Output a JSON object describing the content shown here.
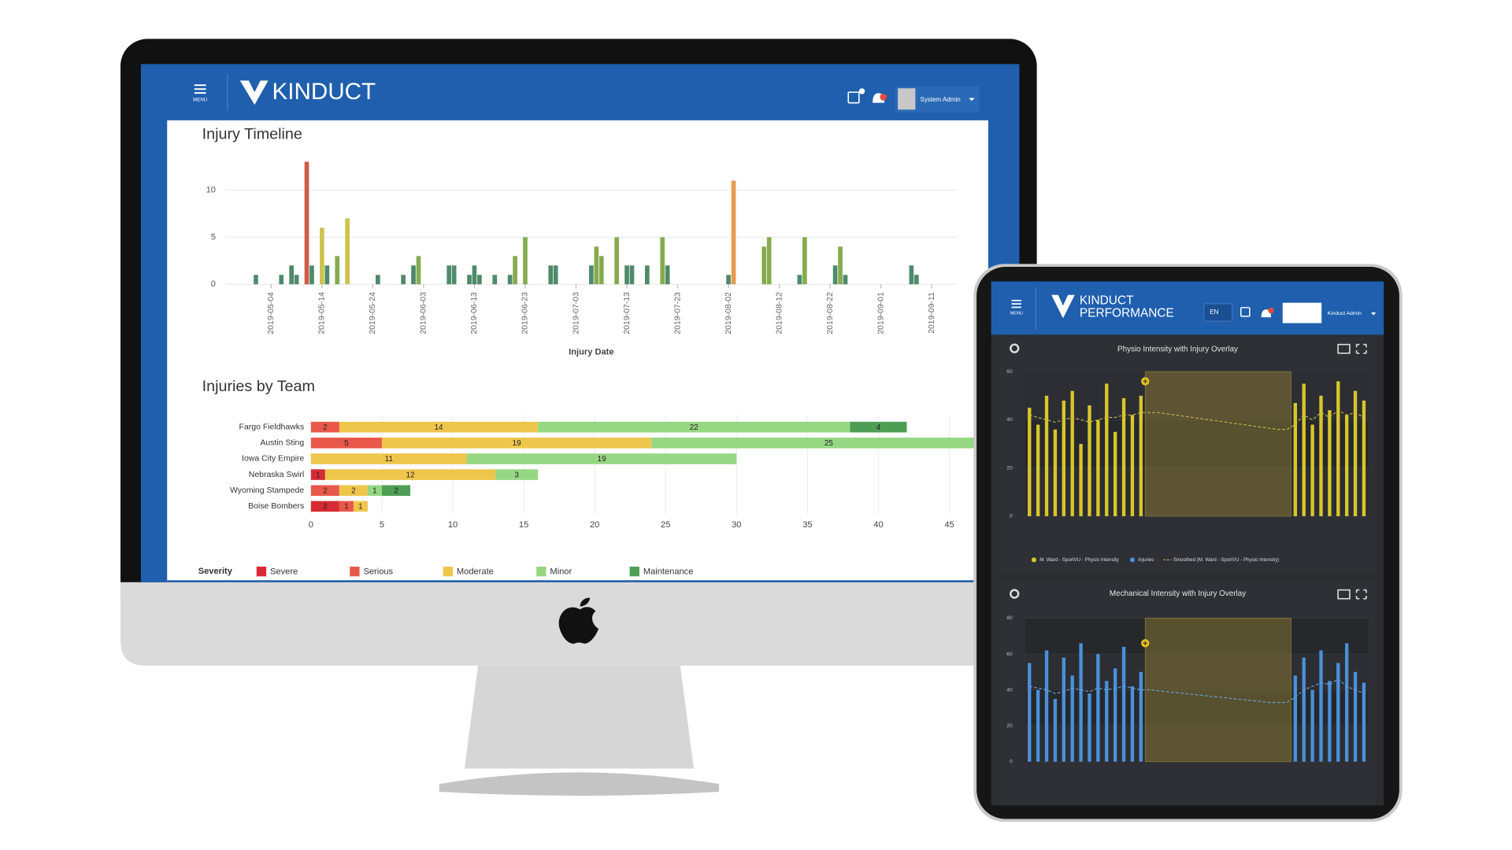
{
  "desktop": {
    "menu": "MENU",
    "brand": "KINDUCT",
    "user": "System Admin"
  },
  "tablet": {
    "menu": "MENU",
    "brand": "KINDUCT",
    "brand_sub": "PERFORMANCE",
    "language": "EN",
    "user": "Kinduct Admin"
  },
  "chart_data": [
    {
      "type": "bar",
      "title": "Injury Timeline",
      "xlabel": "Injury Date",
      "x": [
        "2019-05-01",
        "2019-05-06",
        "2019-05-08",
        "2019-05-09",
        "2019-05-11",
        "2019-05-12",
        "2019-05-14",
        "2019-05-15",
        "2019-05-17",
        "2019-05-19",
        "2019-05-25",
        "2019-05-30",
        "2019-06-01",
        "2019-06-02",
        "2019-06-08",
        "2019-06-09",
        "2019-06-12",
        "2019-06-13",
        "2019-06-14",
        "2019-06-17",
        "2019-06-20",
        "2019-06-21",
        "2019-06-23",
        "2019-06-28",
        "2019-06-29",
        "2019-07-06",
        "2019-07-07",
        "2019-07-08",
        "2019-07-11",
        "2019-07-13",
        "2019-07-14",
        "2019-07-17",
        "2019-07-20",
        "2019-07-21",
        "2019-08-02",
        "2019-08-03",
        "2019-08-09",
        "2019-08-10",
        "2019-08-16",
        "2019-08-17",
        "2019-08-23",
        "2019-08-24",
        "2019-08-25",
        "2019-09-07",
        "2019-09-08"
      ],
      "values": [
        1,
        1,
        2,
        1,
        13,
        2,
        6,
        2,
        3,
        7,
        1,
        1,
        2,
        3,
        2,
        2,
        1,
        2,
        1,
        1,
        1,
        3,
        5,
        2,
        2,
        2,
        4,
        3,
        5,
        2,
        2,
        2,
        5,
        2,
        1,
        11,
        4,
        5,
        1,
        5,
        2,
        4,
        1,
        2,
        1
      ],
      "colors": [
        "#4f8a6b",
        "#4f8a6b",
        "#4f8a6b",
        "#4f8a6b",
        "#cf5b48",
        "#4f8a6b",
        "#cfc34e",
        "#4f8a6b",
        "#86ab4f",
        "#cfc34e",
        "#4f8a6b",
        "#4f8a6b",
        "#4f8a6b",
        "#86ab4f",
        "#4f8a6b",
        "#4f8a6b",
        "#4f8a6b",
        "#4f8a6b",
        "#4f8a6b",
        "#4f8a6b",
        "#4f8a6b",
        "#86ab4f",
        "#86ab4f",
        "#4f8a6b",
        "#4f8a6b",
        "#4f8a6b",
        "#86ab4f",
        "#86ab4f",
        "#86ab4f",
        "#4f8a6b",
        "#4f8a6b",
        "#4f8a6b",
        "#86ab4f",
        "#4f8a6b",
        "#4f8a6b",
        "#e89a4e",
        "#86ab4f",
        "#86ab4f",
        "#4f8a6b",
        "#86ab4f",
        "#4f8a6b",
        "#86ab4f",
        "#4f8a6b",
        "#4f8a6b",
        "#4f8a6b"
      ],
      "xlim": [
        "2019-04-25",
        "2019-09-16"
      ],
      "xticks": [
        "2019-05-04",
        "2019-05-14",
        "2019-05-24",
        "2019-06-03",
        "2019-06-13",
        "2019-06-23",
        "2019-07-03",
        "2019-07-13",
        "2019-07-23",
        "2019-08-02",
        "2019-08-12",
        "2019-08-22",
        "2019-09-01",
        "2019-09-11"
      ],
      "ylim": [
        0,
        14
      ],
      "yticks": [
        0,
        5,
        10
      ],
      "grid": true
    },
    {
      "type": "hbar",
      "title": "Injuries by Team",
      "legend_title": "Severity",
      "categories": [
        "Fargo Fieldhawks",
        "Austin Sting",
        "Iowa City Empire",
        "Nebraska Swirl",
        "Wyoming Stampede",
        "Boise Bombers"
      ],
      "series": [
        {
          "name": "Severe",
          "color": "#d62a34",
          "values": [
            null,
            null,
            null,
            1,
            null,
            2
          ]
        },
        {
          "name": "Serious",
          "color": "#e8584a",
          "values": [
            2,
            5,
            null,
            null,
            2,
            1
          ]
        },
        {
          "name": "Moderate",
          "color": "#efc64c",
          "values": [
            14,
            19,
            11,
            12,
            2,
            1
          ]
        },
        {
          "name": "Minor",
          "color": "#96d784",
          "values": [
            22,
            25,
            19,
            3,
            1,
            null
          ]
        },
        {
          "name": "Maintenance",
          "color": "#4e9e56",
          "values": [
            4,
            null,
            null,
            null,
            2,
            null
          ]
        }
      ],
      "xlim": [
        0,
        45
      ],
      "xticks": [
        0,
        5,
        10,
        15,
        20,
        25,
        30,
        35,
        40,
        45
      ],
      "grid": true
    },
    {
      "type": "combo",
      "title": "Physio Intensity with Injury Overlay",
      "categories": [
        null,
        null,
        null,
        null,
        null,
        null,
        null,
        null,
        null,
        null,
        null,
        null,
        null,
        null,
        null,
        null,
        null,
        null,
        null,
        null,
        null,
        null,
        null,
        null,
        null,
        null,
        null,
        null,
        null,
        null,
        null,
        null,
        null,
        null,
        null,
        null,
        null,
        null,
        null,
        null
      ],
      "highlight": [
        14,
        30
      ],
      "series": [
        {
          "name": "M. Ward - SportVU - Physio Intensity",
          "kind": "bar",
          "color": "#d9c62b",
          "values": [
            45,
            38,
            50,
            36,
            48,
            52,
            30,
            46,
            40,
            55,
            35,
            49,
            42,
            50,
            null,
            null,
            null,
            null,
            null,
            null,
            null,
            null,
            null,
            null,
            null,
            null,
            null,
            null,
            null,
            null,
            null,
            47,
            55,
            38,
            50,
            44,
            56,
            42,
            52,
            48
          ]
        },
        {
          "name": "Injuries",
          "kind": "marker",
          "color": "#4a90d9",
          "values": [
            null,
            null,
            null,
            null,
            null,
            null,
            null,
            null,
            null,
            null,
            null,
            null,
            null,
            null,
            56,
            null,
            null,
            null,
            null,
            null,
            null,
            null,
            null,
            null,
            null,
            null,
            null,
            null,
            null,
            null,
            null,
            null,
            null,
            null,
            null,
            null,
            null,
            null,
            null,
            null
          ]
        },
        {
          "name": "Smoothed (M. Ward - SportVU - Physio Intensity)",
          "kind": "line",
          "color": "#c9b84a",
          "values": [
            42,
            41,
            40,
            39,
            40,
            41,
            40,
            39,
            40,
            41,
            41,
            42,
            42,
            43,
            43,
            43,
            42.5,
            42,
            41.5,
            41,
            40.5,
            40,
            39.5,
            39,
            38.5,
            38,
            37.5,
            37,
            36.5,
            36,
            36,
            38,
            42,
            40,
            43,
            41,
            44,
            42,
            43,
            41
          ]
        }
      ],
      "ylim": [
        0,
        60
      ],
      "yticks": [
        0,
        20,
        40,
        60
      ]
    },
    {
      "type": "combo",
      "title": "Mechanical Intensity with Injury Overlay",
      "categories": [
        null,
        null,
        null,
        null,
        null,
        null,
        null,
        null,
        null,
        null,
        null,
        null,
        null,
        null,
        null,
        null,
        null,
        null,
        null,
        null,
        null,
        null,
        null,
        null,
        null,
        null,
        null,
        null,
        null,
        null,
        null,
        null,
        null,
        null,
        null,
        null,
        null,
        null,
        null,
        null
      ],
      "highlight": [
        14,
        30
      ],
      "series": [
        {
          "kind": "bar",
          "color": "#4a90d9",
          "values": [
            55,
            40,
            62,
            35,
            58,
            48,
            66,
            38,
            60,
            45,
            52,
            64,
            42,
            50,
            null,
            null,
            null,
            null,
            null,
            null,
            null,
            null,
            null,
            null,
            null,
            null,
            null,
            null,
            null,
            null,
            null,
            48,
            58,
            40,
            62,
            45,
            55,
            66,
            50,
            44
          ]
        },
        {
          "kind": "marker",
          "color": "#4a90d9",
          "values": [
            null,
            null,
            null,
            null,
            null,
            null,
            null,
            null,
            null,
            null,
            null,
            null,
            null,
            null,
            66,
            null,
            null,
            null,
            null,
            null,
            null,
            null,
            null,
            null,
            null,
            null,
            null,
            null,
            null,
            null,
            null,
            null,
            null,
            null,
            null,
            null,
            null,
            null,
            null,
            null
          ]
        },
        {
          "kind": "line",
          "color": "#6aa6e0",
          "values": [
            42,
            41,
            40,
            38,
            39,
            41,
            40,
            39,
            41,
            40,
            41,
            42,
            41,
            40,
            40,
            39.5,
            39,
            38.5,
            38,
            37.5,
            37,
            36.5,
            36,
            35.5,
            35,
            34.5,
            34,
            33.5,
            33,
            33,
            33,
            36,
            40,
            42,
            44,
            43,
            46,
            42,
            40,
            38
          ]
        }
      ],
      "ylim": [
        0,
        80
      ],
      "yticks": [
        0,
        20,
        40,
        60,
        80
      ]
    }
  ]
}
